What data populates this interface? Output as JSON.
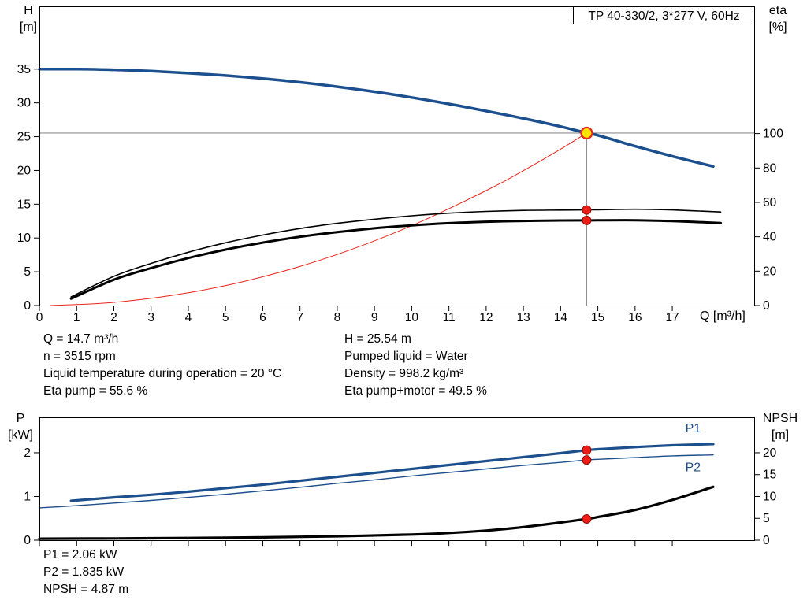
{
  "title": "TP 40-330/2, 3*277 V, 60Hz",
  "colors": {
    "curve_blue": "#1c4f8e",
    "curve_black": "#000000",
    "system_red": "#e8251c",
    "marker_red": "#ee1c17",
    "marker_red_edge": "#8f0d08",
    "duty_yellow": "#ffe400",
    "crosshair_gray": "#8f8f8f"
  },
  "axis_labels": {
    "h1": "H",
    "h2": "[m]",
    "eta1": "eta",
    "eta2": "[%]",
    "p1": "P",
    "p2": "[kW]",
    "npsh1": "NPSH",
    "npsh2": "[m]"
  },
  "info": {
    "top_left": [
      "Q = 14.7 m³/h",
      "n = 3515 rpm",
      "Liquid temperature during operation = 20 °C",
      "Eta pump = 55.6 %"
    ],
    "top_right": [
      "H = 25.54 m",
      "Pumped liquid = Water",
      "Density = 998.2 kg/m³",
      "Eta pump+motor = 49.5 %"
    ],
    "bottom": [
      "P1 = 2.06 kW",
      "P2 = 1.835 kW",
      "NPSH = 4.87 m"
    ]
  },
  "chart_data": [
    {
      "type": "line",
      "title": "TP 40-330/2, 3*277 V, 60Hz",
      "xlabel": "Q [m³/h]",
      "ylabel_left": "H [m]",
      "ylabel_right": "eta [%]",
      "xlim": [
        0,
        19.2
      ],
      "x_ticks": [
        0,
        1,
        2,
        3,
        4,
        5,
        6,
        7,
        8,
        9,
        10,
        11,
        12,
        13,
        14,
        15,
        16,
        17
      ],
      "ylim_left": [
        0,
        44.3
      ],
      "y_ticks_left": [
        0,
        5,
        10,
        15,
        20,
        25,
        30,
        35
      ],
      "ylim_right": [
        0,
        174
      ],
      "y_ticks_right": [
        0,
        20,
        40,
        60,
        80,
        100
      ],
      "grid": false,
      "crosshair": {
        "x": 14.7,
        "y": 25.54
      },
      "series": [
        {
          "name": "system-curve",
          "axis": "left",
          "color": "#e8251c",
          "width": 1,
          "x": [
            0.3,
            2,
            4,
            6,
            8,
            10,
            12,
            13,
            14,
            14.7
          ],
          "y": [
            0.0,
            0.47,
            1.89,
            4.25,
            7.56,
            11.82,
            17.02,
            19.97,
            23.16,
            25.54
          ]
        },
        {
          "name": "eta-pump-curve",
          "axis": "right",
          "color": "#000000",
          "width": 1.6,
          "x": [
            0.85,
            2,
            3,
            4,
            5,
            6,
            7,
            8,
            9,
            10,
            11,
            12,
            13,
            14,
            14.7,
            15,
            16,
            17,
            18.3
          ],
          "y": [
            5,
            17,
            24.5,
            31,
            36.5,
            41,
            44.8,
            47.8,
            50.2,
            52.2,
            53.7,
            54.7,
            55.3,
            55.5,
            55.6,
            55.7,
            56,
            55.6,
            54.4
          ]
        },
        {
          "name": "eta-pump-motor-curve",
          "axis": "right",
          "color": "#000000",
          "width": 3,
          "x": [
            0.85,
            2,
            3,
            4,
            5,
            6,
            7,
            8,
            9,
            10,
            11,
            12,
            13,
            14,
            14.7,
            15,
            16,
            17,
            18.3
          ],
          "y": [
            4,
            15,
            21.8,
            27.6,
            32.5,
            36.6,
            40,
            42.7,
            44.9,
            46.6,
            47.9,
            48.7,
            49.2,
            49.45,
            49.5,
            49.55,
            49.6,
            49.1,
            48
          ]
        },
        {
          "name": "head-curve",
          "axis": "left",
          "color": "#1c4f8e",
          "width": 3.5,
          "x": [
            0,
            1,
            2,
            3,
            4,
            5,
            6,
            7,
            8,
            9,
            10,
            11,
            12,
            13,
            14,
            14.7,
            15,
            16,
            17,
            18.1
          ],
          "y": [
            35.0,
            35.0,
            34.9,
            34.7,
            34.4,
            34.05,
            33.6,
            33.05,
            32.4,
            31.65,
            30.8,
            29.85,
            28.8,
            27.7,
            26.5,
            25.54,
            25.2,
            23.6,
            22.1,
            20.6
          ]
        }
      ],
      "markers": [
        {
          "x": 14.7,
          "y": 55.6,
          "axis": "right",
          "style": "red"
        },
        {
          "x": 14.7,
          "y": 49.5,
          "axis": "right",
          "style": "red"
        },
        {
          "x": 14.7,
          "y": 25.54,
          "axis": "left",
          "style": "duty"
        }
      ],
      "duty_point": {
        "Q_m3h": 14.7,
        "H_m": 25.54,
        "eta_pump_pct": 55.6,
        "eta_pump_motor_pct": 49.5
      }
    },
    {
      "type": "line",
      "xlabel": "Q [m³/h]",
      "ylabel_left": "P [kW]",
      "ylabel_right": "NPSH [m]",
      "xlim": [
        0,
        19.2
      ],
      "x_ticks": [
        0,
        1,
        2,
        3,
        4,
        5,
        6,
        7,
        8,
        9,
        10,
        11,
        12,
        13,
        14,
        15,
        16,
        17
      ],
      "ylim_left": [
        0,
        2.81
      ],
      "y_ticks_left": [
        0,
        1,
        2
      ],
      "ylim_right": [
        0,
        28.1
      ],
      "y_ticks_right": [
        0,
        5,
        10,
        15,
        20
      ],
      "grid": false,
      "series": [
        {
          "name": "p2-curve",
          "axis": "left",
          "color": "#1c4f8e",
          "width": 1.4,
          "x": [
            0,
            1,
            2,
            3,
            4,
            5,
            6,
            7,
            8,
            9,
            10,
            11,
            12,
            13,
            14,
            14.7,
            15,
            16,
            17,
            18.1
          ],
          "y": [
            0.74,
            0.79,
            0.85,
            0.91,
            0.98,
            1.05,
            1.13,
            1.21,
            1.3,
            1.38,
            1.47,
            1.55,
            1.63,
            1.71,
            1.78,
            1.835,
            1.85,
            1.89,
            1.93,
            1.95
          ]
        },
        {
          "name": "p1-curve",
          "axis": "left",
          "color": "#1c4f8e",
          "width": 3.2,
          "x": [
            0.85,
            2,
            3,
            4,
            5,
            6,
            7,
            8,
            9,
            10,
            11,
            12,
            13,
            14,
            14.7,
            15,
            16,
            17,
            18.1
          ],
          "y": [
            0.9,
            0.98,
            1.04,
            1.11,
            1.19,
            1.27,
            1.36,
            1.45,
            1.54,
            1.63,
            1.72,
            1.81,
            1.9,
            1.99,
            2.06,
            2.08,
            2.13,
            2.17,
            2.2
          ]
        },
        {
          "name": "npsh-curve",
          "axis": "right",
          "color": "#000000",
          "width": 3.2,
          "x": [
            0,
            2,
            4,
            6,
            8,
            10,
            11,
            12,
            13,
            14,
            14.7,
            15,
            16,
            17,
            18.1
          ],
          "y": [
            0.35,
            0.4,
            0.5,
            0.65,
            0.9,
            1.3,
            1.65,
            2.2,
            3.0,
            4.05,
            4.87,
            5.3,
            6.9,
            9.2,
            12.2
          ]
        }
      ],
      "markers": [
        {
          "x": 14.7,
          "y": 2.06,
          "axis": "left",
          "style": "red"
        },
        {
          "x": 14.7,
          "y": 1.835,
          "axis": "left",
          "style": "red"
        },
        {
          "x": 14.7,
          "y": 4.87,
          "axis": "right",
          "style": "red"
        }
      ],
      "annotations": [
        {
          "text": "P1",
          "x": 17.35,
          "y": 2.47,
          "axis": "left",
          "color": "#1c4f8e"
        },
        {
          "text": "P2",
          "x": 17.35,
          "y": 1.58,
          "axis": "left",
          "color": "#1c4f8e"
        }
      ],
      "duty_point": {
        "P1_kW": 2.06,
        "P2_kW": 1.835,
        "NPSH_m": 4.87
      }
    }
  ]
}
